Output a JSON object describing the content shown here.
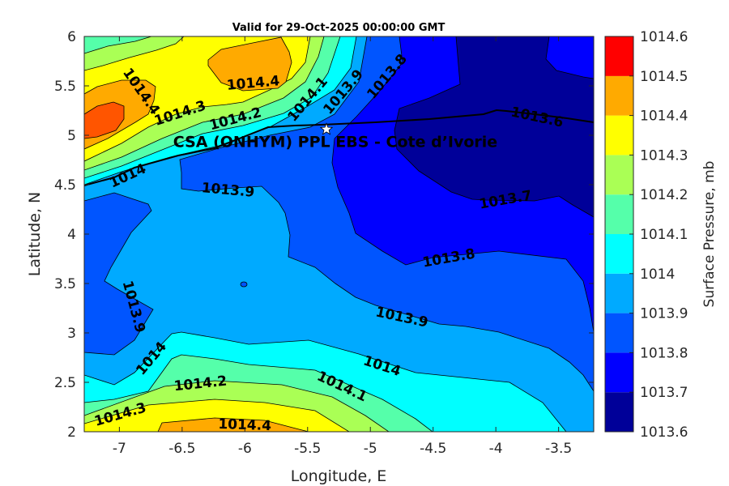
{
  "chart_data": {
    "type": "contour",
    "title": "Valid for 29-Oct-2025 00:00:00 GMT",
    "xlabel": "Longitude, E",
    "ylabel": "Latitude, N",
    "xlim": [
      -7.28,
      -3.22
    ],
    "ylim": [
      2,
      6
    ],
    "xticks": [
      -7,
      -6.5,
      -6,
      -5.5,
      -5,
      -4.5,
      -4,
      -3.5
    ],
    "xtick_labels": [
      "-7",
      "-6.5",
      "-6",
      "-5.5",
      "-5",
      "-4.5",
      "-4",
      "-3.5"
    ],
    "yticks": [
      2,
      2.5,
      3,
      3.5,
      4,
      4.5,
      5,
      5.5,
      6
    ],
    "ytick_labels": [
      "2",
      "2.5",
      "3",
      "3.5",
      "4",
      "4.5",
      "5",
      "5.5",
      "6"
    ],
    "colorbar": {
      "label": "Surface Pressure, mb",
      "range": [
        1013.6,
        1014.6
      ],
      "levels": [
        1013.6,
        1013.7,
        1013.8,
        1013.9,
        1014,
        1014.1,
        1014.2,
        1014.3,
        1014.4,
        1014.5,
        1014.6
      ],
      "tick_labels": [
        "1013.6",
        "1013.7",
        "1013.8",
        "1013.9",
        "1014",
        "1014.1",
        "1014.2",
        "1014.3",
        "1014.4",
        "1014.5",
        "1014.6"
      ],
      "colors": [
        "#000099",
        "#0000ff",
        "#0055ff",
        "#00aaff",
        "#00ffff",
        "#55ffaa",
        "#aaff55",
        "#ffff00",
        "#ffaa00",
        "#ff5500"
      ]
    },
    "contour_labels": [
      "1014.4",
      "1014.4",
      "1014.3",
      "1014.2",
      "1014.1",
      "1013.9",
      "1013.8",
      "1013.6",
      "1014",
      "1013.9",
      "1013.7",
      "1013.8",
      "1013.9",
      "1014",
      "1013.9",
      "1014",
      "1014.1",
      "1014.2",
      "1014.3",
      "1014.4"
    ],
    "station": {
      "name": "CSA (ONHYM) PPL EBS  - Cote d’Ivorie",
      "lon": -5.35,
      "lat": 5.06,
      "marker": "star"
    }
  }
}
